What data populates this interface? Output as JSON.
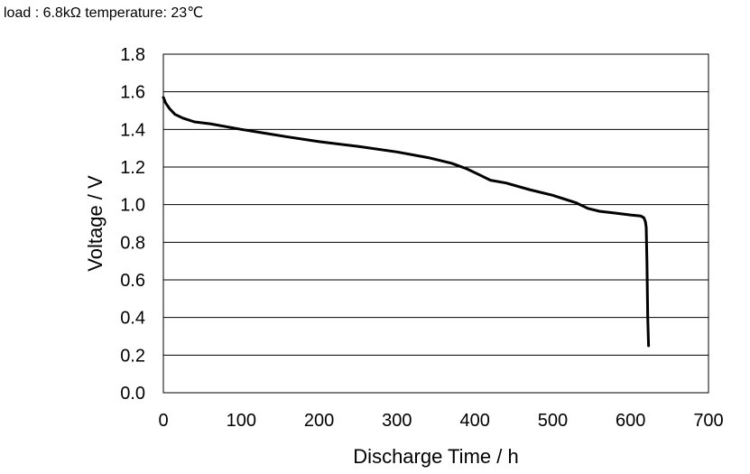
{
  "header": {
    "subtitle": "load : 6.8kΩ  temperature: 23℃"
  },
  "chart_data": {
    "type": "line",
    "title": "",
    "subtitle": "load : 6.8kΩ  temperature: 23℃",
    "xlabel": "Discharge Time / h",
    "ylabel": "Voltage / V",
    "xlim": [
      0,
      700
    ],
    "ylim": [
      0.0,
      1.8
    ],
    "xticks": [
      "0",
      "100",
      "200",
      "300",
      "400",
      "500",
      "600",
      "700"
    ],
    "yticks": [
      "0.0",
      "0.2",
      "0.4",
      "0.6",
      "0.8",
      "1.0",
      "1.2",
      "1.4",
      "1.6",
      "1.8"
    ],
    "grid": "horizontal",
    "line_color": "#000000",
    "series": [
      {
        "x": [
          0,
          3,
          8,
          15,
          25,
          40,
          60,
          80,
          100,
          130,
          160,
          200,
          250,
          300,
          340,
          370,
          390,
          405,
          420,
          440,
          470,
          500,
          530,
          545,
          560,
          580,
          600,
          613,
          617,
          619,
          620,
          621,
          622,
          623
        ],
        "y": [
          1.57,
          1.54,
          1.51,
          1.48,
          1.46,
          1.44,
          1.43,
          1.415,
          1.4,
          1.38,
          1.36,
          1.335,
          1.31,
          1.28,
          1.25,
          1.22,
          1.19,
          1.16,
          1.13,
          1.115,
          1.08,
          1.05,
          1.01,
          0.98,
          0.965,
          0.955,
          0.945,
          0.94,
          0.93,
          0.91,
          0.88,
          0.7,
          0.4,
          0.25
        ]
      }
    ]
  }
}
